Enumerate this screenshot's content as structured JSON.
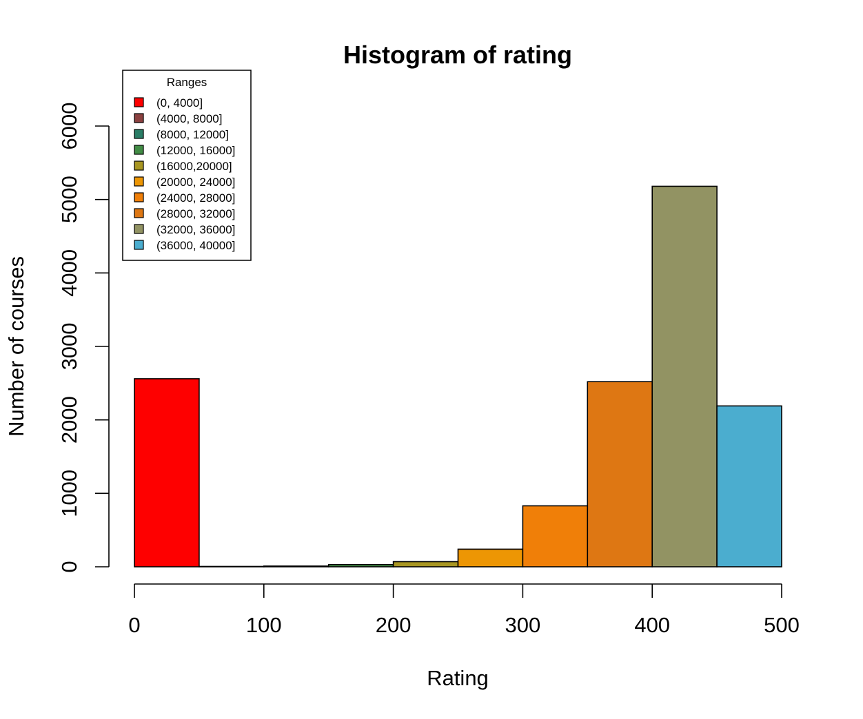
{
  "chart_data": {
    "type": "bar",
    "title": "Histogram of rating",
    "xlabel": "Rating",
    "ylabel": "Number of courses",
    "xlim": [
      0,
      500
    ],
    "ylim": [
      0,
      6000
    ],
    "x_ticks": [
      "0",
      "100",
      "200",
      "300",
      "400",
      "500"
    ],
    "y_ticks": [
      "0",
      "1000",
      "2000",
      "3000",
      "4000",
      "5000",
      "6000"
    ],
    "bins": [
      {
        "range": [
          0,
          50
        ],
        "value": 2560,
        "color": "#fe0000"
      },
      {
        "range": [
          50,
          100
        ],
        "value": 5,
        "color": "#8b4140"
      },
      {
        "range": [
          100,
          150
        ],
        "value": 10,
        "color": "#2a7d66"
      },
      {
        "range": [
          150,
          200
        ],
        "value": 30,
        "color": "#428c45"
      },
      {
        "range": [
          200,
          250
        ],
        "value": 70,
        "color": "#a89622"
      },
      {
        "range": [
          250,
          300
        ],
        "value": 240,
        "color": "#ed9604"
      },
      {
        "range": [
          300,
          350
        ],
        "value": 830,
        "color": "#f07f08"
      },
      {
        "range": [
          350,
          400
        ],
        "value": 2520,
        "color": "#de7713"
      },
      {
        "range": [
          400,
          450
        ],
        "value": 5180,
        "color": "#929363"
      },
      {
        "range": [
          450,
          500
        ],
        "value": 2190,
        "color": "#4badcf"
      }
    ],
    "legend": {
      "title": "Ranges",
      "placement": "top-left",
      "items": [
        {
          "label": "(0, 4000]",
          "color": "#fe0000"
        },
        {
          "label": "(4000, 8000]",
          "color": "#8b4140"
        },
        {
          "label": "(8000, 12000]",
          "color": "#2a7d66"
        },
        {
          "label": "(12000, 16000]",
          "color": "#428c45"
        },
        {
          "label": "(16000,20000]",
          "color": "#a89622"
        },
        {
          "label": "(20000, 24000]",
          "color": "#ed9604"
        },
        {
          "label": "(24000, 28000]",
          "color": "#f07f08"
        },
        {
          "label": "(28000, 32000]",
          "color": "#de7713"
        },
        {
          "label": "(32000, 36000]",
          "color": "#929363"
        },
        {
          "label": "(36000, 40000]",
          "color": "#4badcf"
        }
      ]
    }
  }
}
